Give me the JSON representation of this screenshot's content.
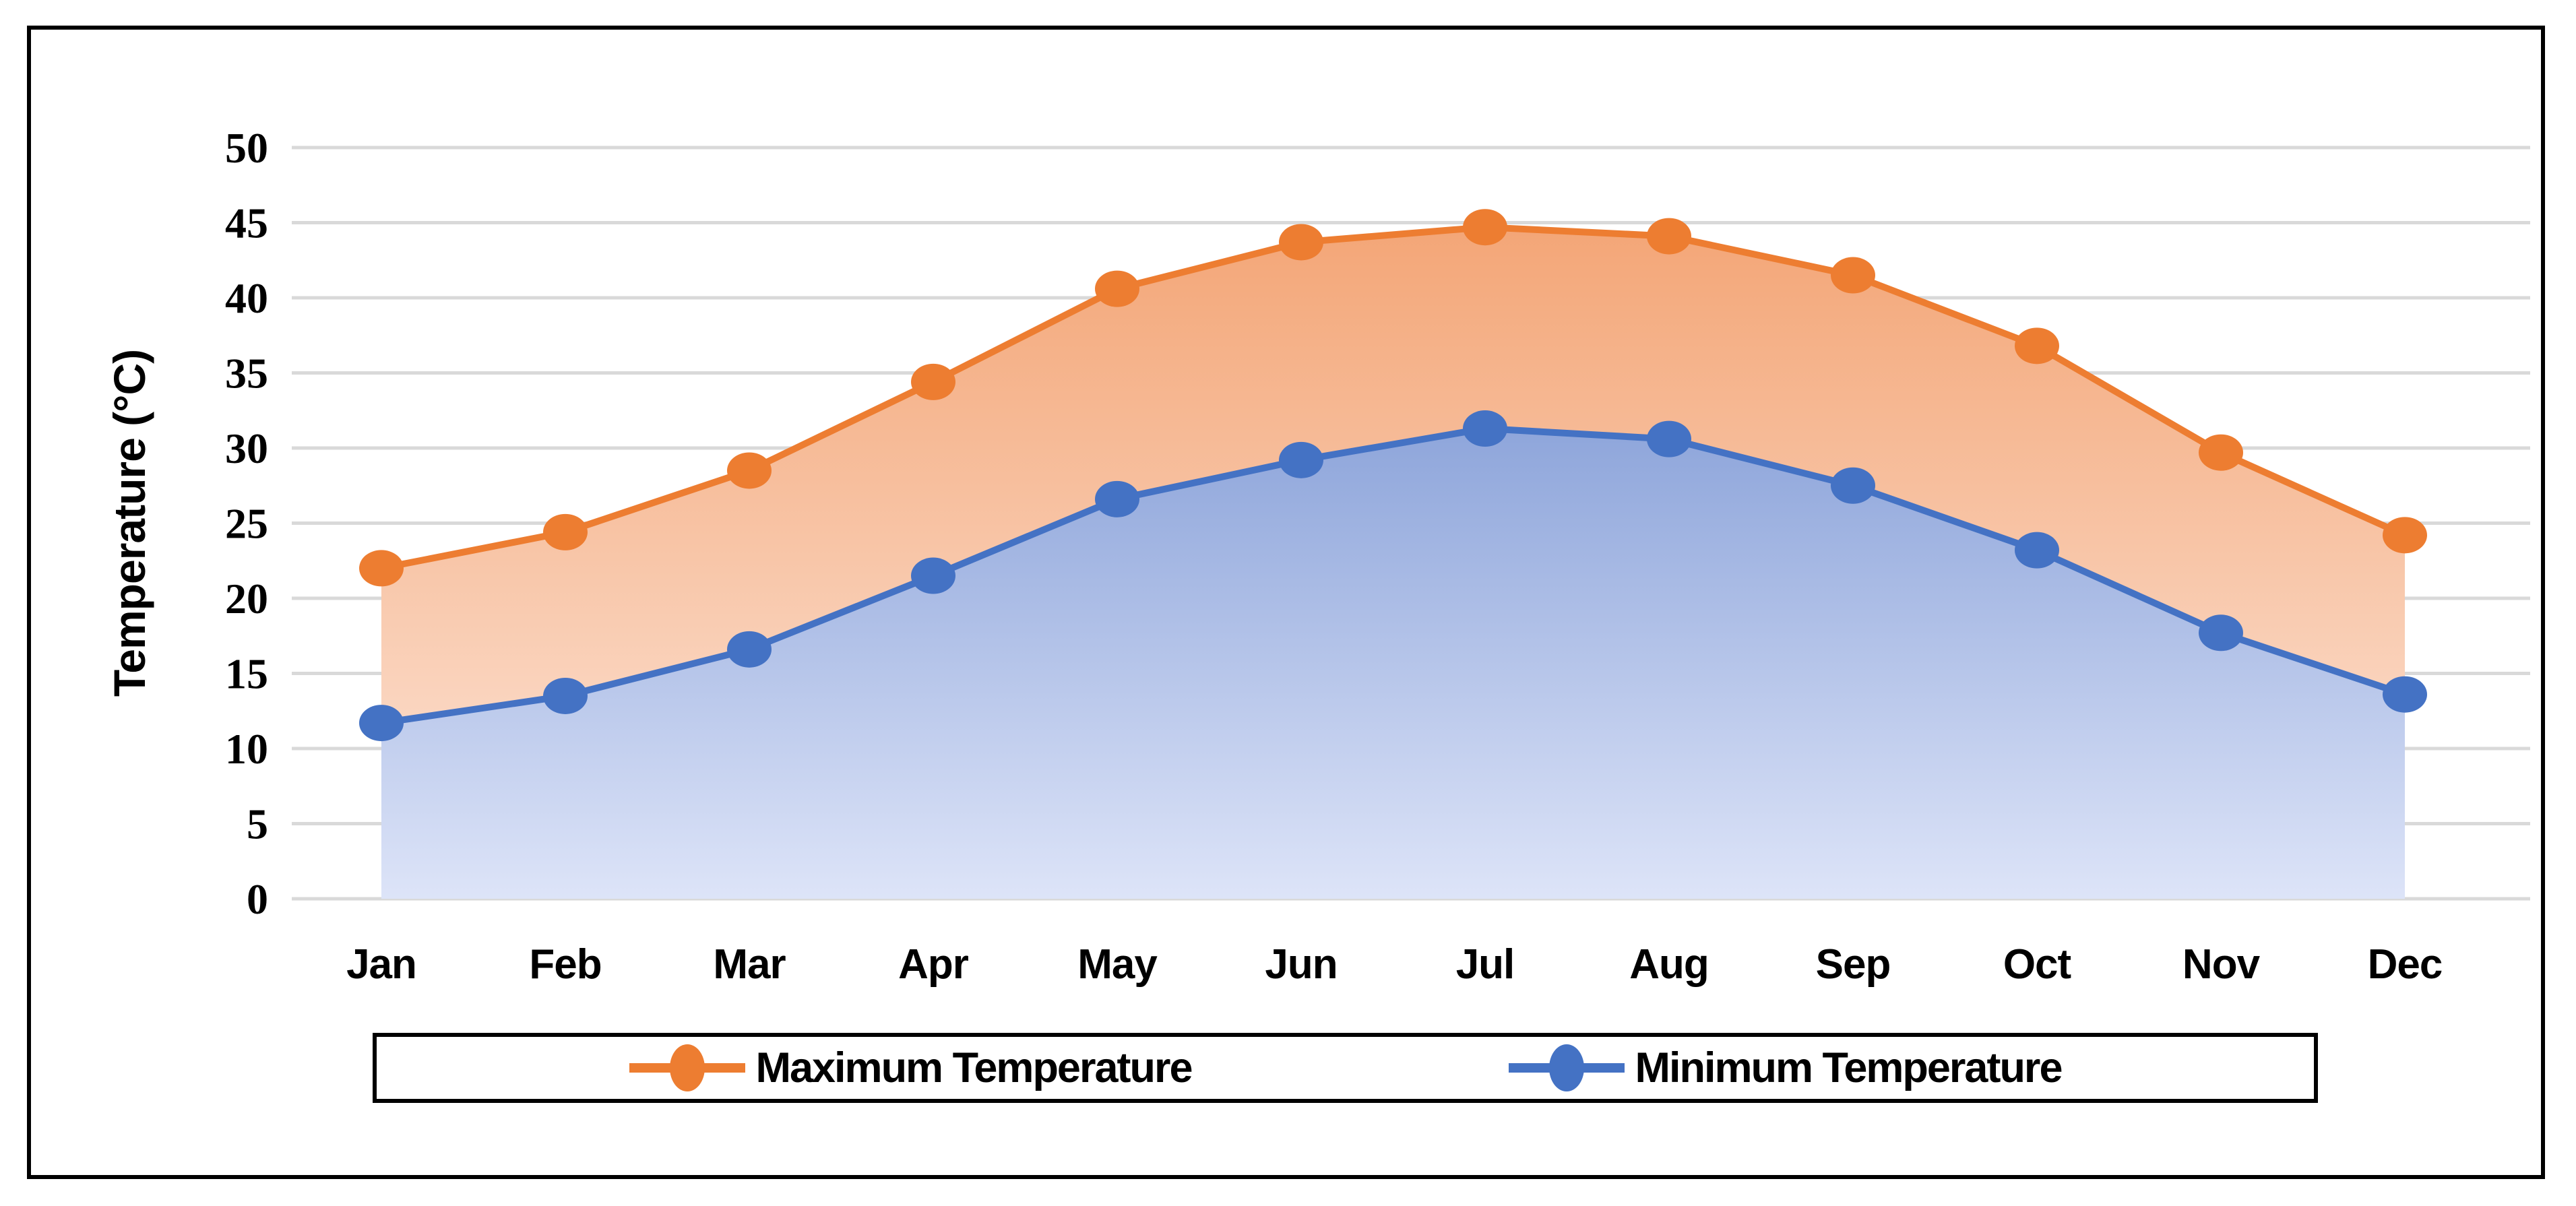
{
  "figure": {
    "background": "#FFFFFF",
    "border_color": "#000000"
  },
  "y_axis": {
    "title": "Temperature (°C)",
    "tick_labels": [
      "0",
      "5",
      "10",
      "15",
      "20",
      "25",
      "30",
      "35",
      "40",
      "45",
      "50"
    ],
    "tick_values": [
      0,
      5,
      10,
      15,
      20,
      25,
      30,
      35,
      40,
      45,
      50
    ]
  },
  "x_axis": {
    "categories": [
      "Jan",
      "Feb",
      "Mar",
      "Apr",
      "May",
      "Jun",
      "Jul",
      "Aug",
      "Sep",
      "Oct",
      "Nov",
      "Dec"
    ]
  },
  "legend": {
    "items": [
      {
        "label": "Maximum Temperature",
        "color": "#ED7D31"
      },
      {
        "label": "Minimum Temperature",
        "color": "#4472C4"
      }
    ]
  },
  "colors": {
    "gridline": "#D9D9D9",
    "max_series": "#ED7D31",
    "min_series": "#4472C4",
    "max_fill_top": "#F29E6B",
    "max_fill_bottom": "#FDE7DB",
    "min_fill_top": "#5F80C9",
    "min_fill_bottom": "#DDE4F8"
  },
  "chart_data": {
    "type": "line",
    "subtype": "area-filled-lines-with-markers",
    "title": "",
    "xlabel": "",
    "ylabel": "Temperature (°C)",
    "ylim": [
      0,
      50
    ],
    "ytick_step": 5,
    "grid": true,
    "legend_position": "bottom",
    "categories": [
      "Jan",
      "Feb",
      "Mar",
      "Apr",
      "May",
      "Jun",
      "Jul",
      "Aug",
      "Sep",
      "Oct",
      "Nov",
      "Dec"
    ],
    "series": [
      {
        "name": "Maximum Temperature",
        "color": "#ED7D31",
        "marker": "circle",
        "values": [
          22.0,
          24.4,
          28.5,
          34.4,
          40.6,
          43.7,
          44.7,
          44.1,
          41.5,
          36.8,
          29.7,
          24.2
        ]
      },
      {
        "name": "Minimum Temperature",
        "color": "#4472C4",
        "marker": "circle",
        "values": [
          11.7,
          13.5,
          16.6,
          21.5,
          26.6,
          29.2,
          31.3,
          30.6,
          27.5,
          23.2,
          17.7,
          13.6
        ]
      }
    ]
  }
}
